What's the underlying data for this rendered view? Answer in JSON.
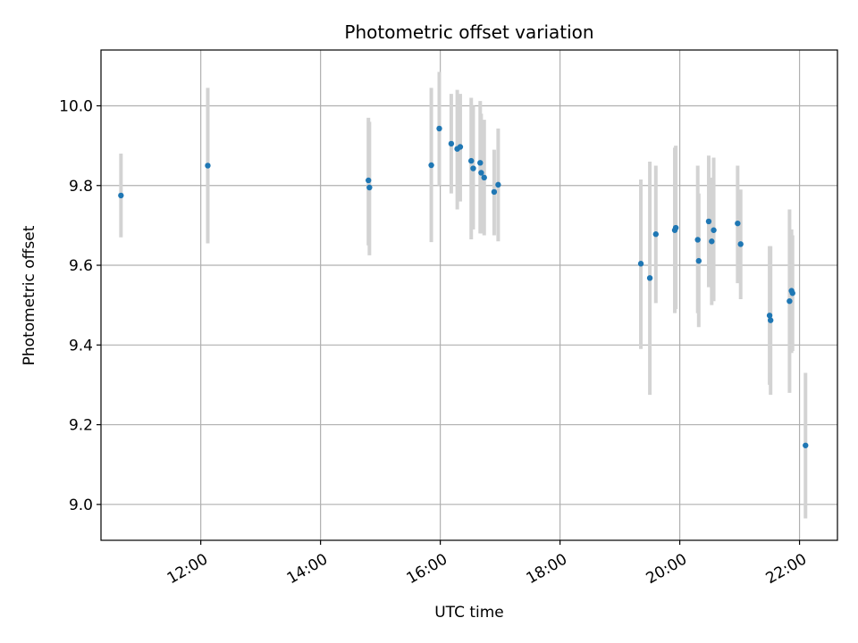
{
  "chart_data": {
    "type": "scatter",
    "title": "Photometric offset variation",
    "xlabel": "UTC time",
    "ylabel": "Photometric offset",
    "x_ticks": [
      "12:00",
      "14:00",
      "16:00",
      "18:00",
      "20:00",
      "22:00"
    ],
    "y_ticks": [
      "9.0",
      "9.2",
      "9.4",
      "9.6",
      "9.8",
      "10.0"
    ],
    "xlim": [
      "10:20",
      "22:38"
    ],
    "ylim": [
      8.91,
      10.14
    ],
    "grid": true,
    "colors": {
      "marker": "#1f77b4",
      "errorbar": "#d3d3d3",
      "grid": "#b0b0b0"
    },
    "series": [
      {
        "points": [
          {
            "x": "10:40",
            "y": 9.775,
            "ylo": 9.67,
            "yhi": 9.88
          },
          {
            "x": "12:07",
            "y": 9.85,
            "ylo": 9.655,
            "yhi": 10.045
          },
          {
            "x": "14:48",
            "y": 9.813,
            "ylo": 9.65,
            "yhi": 9.97
          },
          {
            "x": "14:49",
            "y": 9.795,
            "ylo": 9.625,
            "yhi": 9.96
          },
          {
            "x": "15:51",
            "y": 9.851,
            "ylo": 9.658,
            "yhi": 10.045
          },
          {
            "x": "15:59",
            "y": 9.943,
            "ylo": 9.8,
            "yhi": 10.085
          },
          {
            "x": "16:11",
            "y": 9.905,
            "ylo": 9.78,
            "yhi": 10.03
          },
          {
            "x": "16:17",
            "y": 9.892,
            "ylo": 9.74,
            "yhi": 10.04
          },
          {
            "x": "16:20",
            "y": 9.897,
            "ylo": 9.76,
            "yhi": 10.03
          },
          {
            "x": "16:31",
            "y": 9.862,
            "ylo": 9.665,
            "yhi": 10.02
          },
          {
            "x": "16:33",
            "y": 9.843,
            "ylo": 9.69,
            "yhi": 10.0
          },
          {
            "x": "16:40",
            "y": 9.857,
            "ylo": 9.68,
            "yhi": 10.012
          },
          {
            "x": "16:41",
            "y": 9.832,
            "ylo": 9.68,
            "yhi": 9.98
          },
          {
            "x": "16:44",
            "y": 9.82,
            "ylo": 9.675,
            "yhi": 9.965
          },
          {
            "x": "16:54",
            "y": 9.784,
            "ylo": 9.675,
            "yhi": 9.89
          },
          {
            "x": "16:58",
            "y": 9.802,
            "ylo": 9.66,
            "yhi": 9.943
          },
          {
            "x": "19:21",
            "y": 9.604,
            "ylo": 9.39,
            "yhi": 9.815
          },
          {
            "x": "19:30",
            "y": 9.568,
            "ylo": 9.275,
            "yhi": 9.86
          },
          {
            "x": "19:36",
            "y": 9.678,
            "ylo": 9.505,
            "yhi": 9.85
          },
          {
            "x": "19:55",
            "y": 9.688,
            "ylo": 9.48,
            "yhi": 9.895
          },
          {
            "x": "19:56",
            "y": 9.694,
            "ylo": 9.49,
            "yhi": 9.9
          },
          {
            "x": "20:18",
            "y": 9.664,
            "ylo": 9.48,
            "yhi": 9.85
          },
          {
            "x": "20:19",
            "y": 9.611,
            "ylo": 9.445,
            "yhi": 9.78
          },
          {
            "x": "20:29",
            "y": 9.71,
            "ylo": 9.545,
            "yhi": 9.875
          },
          {
            "x": "20:32",
            "y": 9.66,
            "ylo": 9.5,
            "yhi": 9.82
          },
          {
            "x": "20:34",
            "y": 9.688,
            "ylo": 9.51,
            "yhi": 9.87
          },
          {
            "x": "20:58",
            "y": 9.705,
            "ylo": 9.555,
            "yhi": 9.85
          },
          {
            "x": "21:01",
            "y": 9.653,
            "ylo": 9.515,
            "yhi": 9.79
          },
          {
            "x": "21:30",
            "y": 9.474,
            "ylo": 9.3,
            "yhi": 9.648
          },
          {
            "x": "21:31",
            "y": 9.462,
            "ylo": 9.275,
            "yhi": 9.648
          },
          {
            "x": "21:50",
            "y": 9.51,
            "ylo": 9.28,
            "yhi": 9.74
          },
          {
            "x": "21:52",
            "y": 9.536,
            "ylo": 9.38,
            "yhi": 9.69
          },
          {
            "x": "21:53",
            "y": 9.53,
            "ylo": 9.385,
            "yhi": 9.675
          },
          {
            "x": "22:06",
            "y": 9.148,
            "ylo": 8.965,
            "yhi": 9.33
          }
        ]
      }
    ]
  }
}
